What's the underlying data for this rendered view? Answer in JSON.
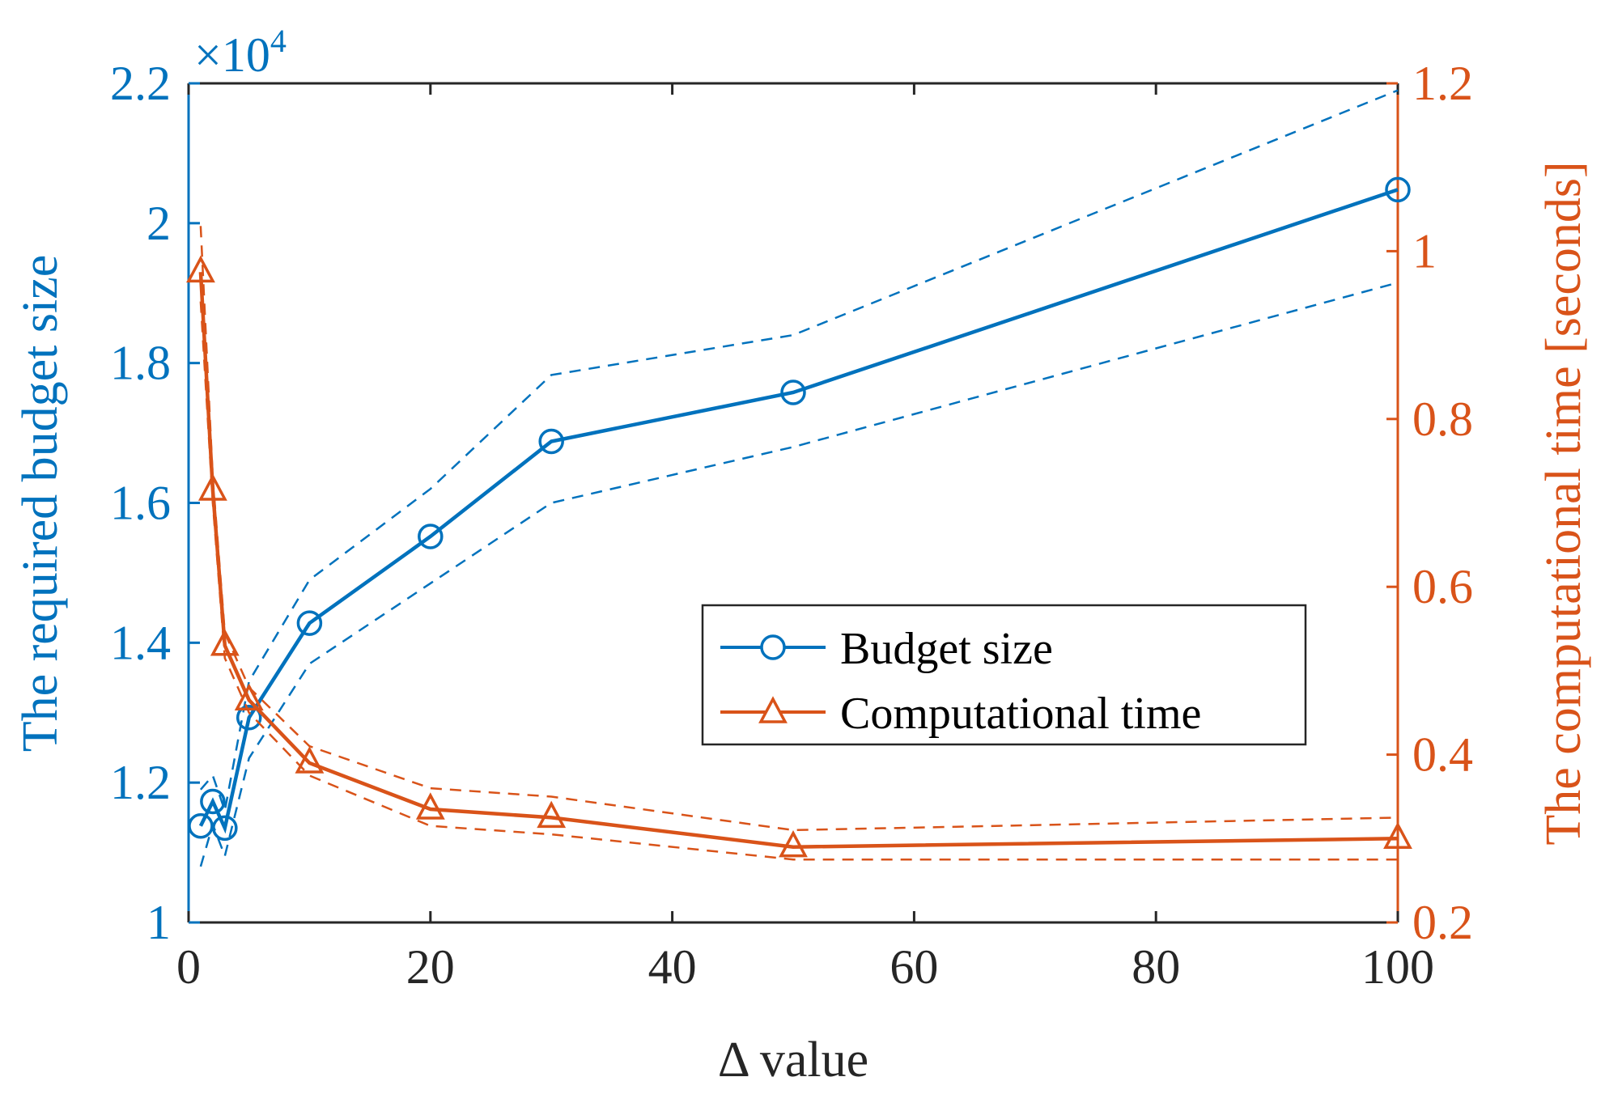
{
  "chart_data": {
    "type": "line",
    "xlabel": "Δ value",
    "x_ticks": [
      "0",
      "20",
      "40",
      "60",
      "80",
      "100"
    ],
    "xlim": [
      0,
      100
    ],
    "left_axis": {
      "label": "The required budget size",
      "exponent_label": "×10",
      "exponent_power": "4",
      "ticks": [
        "1",
        "1.2",
        "1.4",
        "1.6",
        "1.8",
        "2",
        "2.2"
      ],
      "ylim": [
        1.0,
        2.2
      ],
      "color": "#0072BD"
    },
    "right_axis": {
      "label": "The computational time [seconds]",
      "ticks": [
        "0.2",
        "0.4",
        "0.6",
        "0.8",
        "1",
        "1.2"
      ],
      "ylim": [
        0.2,
        1.2
      ],
      "color": "#D95319"
    },
    "series": [
      {
        "name": "Budget size",
        "axis": "left",
        "marker": "circle",
        "color": "#0072BD",
        "x": [
          1,
          2,
          3,
          5,
          10,
          20,
          30,
          50,
          100
        ],
        "y": [
          1.138,
          1.173,
          1.135,
          1.293,
          1.428,
          1.552,
          1.688,
          1.758,
          2.048
        ],
        "upper": [
          1.19,
          1.21,
          1.16,
          1.345,
          1.49,
          1.62,
          1.783,
          1.84,
          2.19
        ],
        "lower": [
          1.08,
          1.14,
          1.095,
          1.235,
          1.37,
          1.485,
          1.6,
          1.68,
          1.915
        ]
      },
      {
        "name": "Computational time",
        "axis": "right",
        "marker": "triangle",
        "color": "#D95319",
        "x": [
          1,
          2,
          3,
          5,
          10,
          20,
          30,
          50,
          100
        ],
        "y": [
          0.975,
          0.715,
          0.53,
          0.465,
          0.39,
          0.335,
          0.325,
          0.29,
          0.3
        ],
        "upper": [
          1.03,
          0.73,
          0.545,
          0.48,
          0.41,
          0.36,
          0.35,
          0.31,
          0.325
        ],
        "lower": [
          0.94,
          0.7,
          0.515,
          0.45,
          0.375,
          0.315,
          0.305,
          0.275,
          0.275
        ]
      }
    ],
    "legend": {
      "position": "center-right",
      "entries": [
        "Budget size",
        "Computational time"
      ]
    }
  }
}
